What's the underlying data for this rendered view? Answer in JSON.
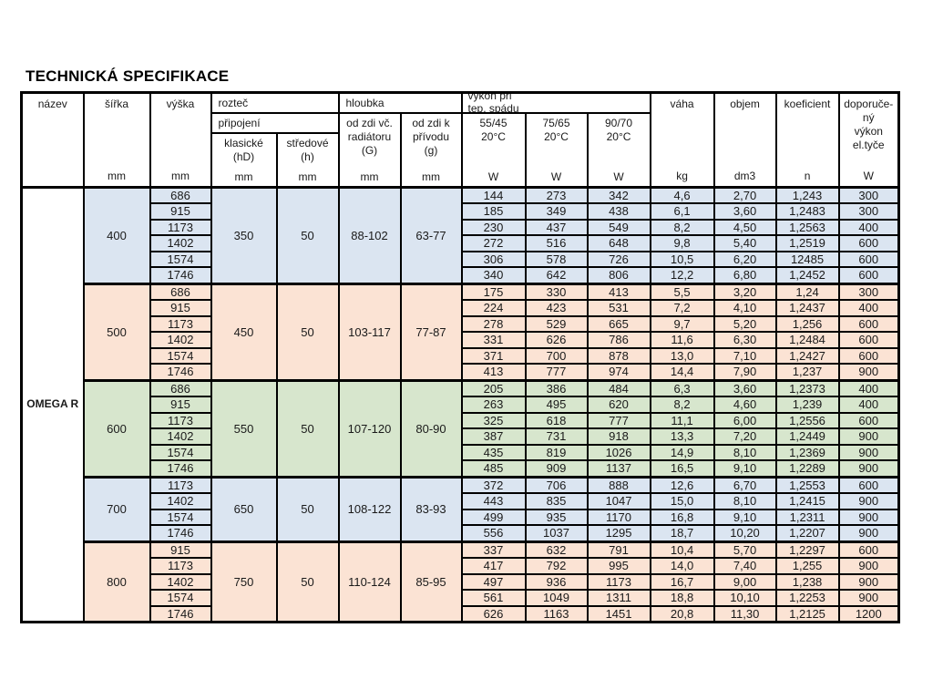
{
  "page": {
    "title": "TECHNICKÁ SPECIFIKACE"
  },
  "colors": {
    "blue": "#dbe5f1",
    "peach": "#fbe3d4",
    "green": "#d7e6cd"
  },
  "table": {
    "product_name": "OMEGA R",
    "header": {
      "nazev": "název",
      "sirka": "šířka",
      "vyska": "výška",
      "roztec": "rozteč",
      "pripojeni": "připojení",
      "klasicke_lines": [
        "klasické",
        "(hD)"
      ],
      "stredove_lines": [
        "středové",
        "(h)"
      ],
      "hloubka": "hloubka",
      "od_zdi_g_lines": [
        "od zdi  vč.",
        "radiátoru",
        "(G)"
      ],
      "od_zdi_p_lines": [
        "od zdi  k",
        "přívodu",
        "(g)"
      ],
      "vykon_lines": [
        "výkon při",
        "tep. spádu"
      ],
      "temp_5545": [
        "55/45",
        "20°C"
      ],
      "temp_7565": [
        "75/65",
        "20°C"
      ],
      "temp_9070": [
        "90/70",
        "20°C"
      ],
      "vaha": "váha",
      "objem": "objem",
      "koeficient": "koeficient",
      "doporuceny_lines": [
        "doporuče-",
        "ný",
        "výkon",
        "el.tyče"
      ],
      "units": {
        "mm": "mm",
        "w": "W",
        "kg": "kg",
        "dm3": "dm3",
        "n": "n"
      }
    },
    "groups": [
      {
        "sirka": "400",
        "color": "blue",
        "klasicke": "350",
        "stredove": "50",
        "hloubka_g": "88-102",
        "hloubka_p": "63-77",
        "rows": [
          [
            "686",
            "144",
            "273",
            "342",
            "4,6",
            "2,70",
            "1,243",
            "300"
          ],
          [
            "915",
            "185",
            "349",
            "438",
            "6,1",
            "3,60",
            "1,2483",
            "300"
          ],
          [
            "1173",
            "230",
            "437",
            "549",
            "8,2",
            "4,50",
            "1,2563",
            "400"
          ],
          [
            "1402",
            "272",
            "516",
            "648",
            "9,8",
            "5,40",
            "1,2519",
            "600"
          ],
          [
            "1574",
            "306",
            "578",
            "726",
            "10,5",
            "6,20",
            "12485",
            "600"
          ],
          [
            "1746",
            "340",
            "642",
            "806",
            "12,2",
            "6,80",
            "1,2452",
            "600"
          ]
        ]
      },
      {
        "sirka": "500",
        "color": "peach",
        "klasicke": "450",
        "stredove": "50",
        "hloubka_g": "103-117",
        "hloubka_p": "77-87",
        "rows": [
          [
            "686",
            "175",
            "330",
            "413",
            "5,5",
            "3,20",
            "1,24",
            "300"
          ],
          [
            "915",
            "224",
            "423",
            "531",
            "7,2",
            "4,10",
            "1,2437",
            "400"
          ],
          [
            "1173",
            "278",
            "529",
            "665",
            "9,7",
            "5,20",
            "1,256",
            "600"
          ],
          [
            "1402",
            "331",
            "626",
            "786",
            "11,6",
            "6,30",
            "1,2484",
            "600"
          ],
          [
            "1574",
            "371",
            "700",
            "878",
            "13,0",
            "7,10",
            "1,2427",
            "600"
          ],
          [
            "1746",
            "413",
            "777",
            "974",
            "14,4",
            "7,90",
            "1,237",
            "900"
          ]
        ]
      },
      {
        "sirka": "600",
        "color": "green",
        "klasicke": "550",
        "stredove": "50",
        "hloubka_g": "107-120",
        "hloubka_p": "80-90",
        "rows": [
          [
            "686",
            "205",
            "386",
            "484",
            "6,3",
            "3,60",
            "1,2373",
            "400"
          ],
          [
            "915",
            "263",
            "495",
            "620",
            "8,2",
            "4,60",
            "1,239",
            "400"
          ],
          [
            "1173",
            "325",
            "618",
            "777",
            "11,1",
            "6,00",
            "1,2556",
            "600"
          ],
          [
            "1402",
            "387",
            "731",
            "918",
            "13,3",
            "7,20",
            "1,2449",
            "900"
          ],
          [
            "1574",
            "435",
            "819",
            "1026",
            "14,9",
            "8,10",
            "1,2369",
            "900"
          ],
          [
            "1746",
            "485",
            "909",
            "1137",
            "16,5",
            "9,10",
            "1,2289",
            "900"
          ]
        ]
      },
      {
        "sirka": "700",
        "color": "blue",
        "klasicke": "650",
        "stredove": "50",
        "hloubka_g": "108-122",
        "hloubka_p": "83-93",
        "rows": [
          [
            "1173",
            "372",
            "706",
            "888",
            "12,6",
            "6,70",
            "1,2553",
            "600"
          ],
          [
            "1402",
            "443",
            "835",
            "1047",
            "15,0",
            "8,10",
            "1,2415",
            "900"
          ],
          [
            "1574",
            "499",
            "935",
            "1170",
            "16,8",
            "9,10",
            "1,2311",
            "900"
          ],
          [
            "1746",
            "556",
            "1037",
            "1295",
            "18,7",
            "10,20",
            "1,2207",
            "900"
          ]
        ]
      },
      {
        "sirka": "800",
        "color": "peach",
        "klasicke": "750",
        "stredove": "50",
        "hloubka_g": "110-124",
        "hloubka_p": "85-95",
        "rows": [
          [
            "915",
            "337",
            "632",
            "791",
            "10,4",
            "5,70",
            "1,2297",
            "600"
          ],
          [
            "1173",
            "417",
            "792",
            "995",
            "14,0",
            "7,40",
            "1,255",
            "900"
          ],
          [
            "1402",
            "497",
            "936",
            "1173",
            "16,7",
            "9,00",
            "1,238",
            "900"
          ],
          [
            "1574",
            "561",
            "1049",
            "1311",
            "18,8",
            "10,10",
            "1,2253",
            "900"
          ],
          [
            "1746",
            "626",
            "1163",
            "1451",
            "20,8",
            "11,30",
            "1,2125",
            "1200"
          ]
        ]
      }
    ]
  }
}
